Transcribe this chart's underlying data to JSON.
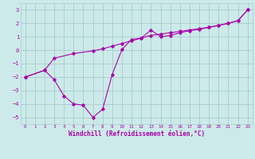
{
  "xlabel": "Windchill (Refroidissement éolien,°C)",
  "background_color": "#cceaea",
  "grid_color": "#aacccc",
  "line_color": "#aa00aa",
  "xlim": [
    -0.5,
    23.5
  ],
  "ylim": [
    -5.5,
    3.5
  ],
  "xticks": [
    0,
    1,
    2,
    3,
    4,
    5,
    6,
    7,
    8,
    9,
    10,
    11,
    12,
    13,
    14,
    15,
    16,
    17,
    18,
    19,
    20,
    21,
    22,
    23
  ],
  "yticks": [
    -5,
    -4,
    -3,
    -2,
    -1,
    0,
    1,
    2,
    3
  ],
  "line1_x": [
    0,
    2,
    3,
    5,
    7,
    8,
    9,
    10,
    11,
    12,
    13,
    14,
    15,
    16,
    17,
    18,
    19,
    20,
    21,
    22,
    23
  ],
  "line1_y": [
    -2.0,
    -1.5,
    -0.6,
    -0.25,
    -0.05,
    0.1,
    0.3,
    0.5,
    0.7,
    0.9,
    1.1,
    1.2,
    1.3,
    1.4,
    1.5,
    1.6,
    1.7,
    1.85,
    2.0,
    2.2,
    3.0
  ],
  "line2_x": [
    0,
    2,
    3,
    4,
    5,
    6,
    7,
    8,
    9,
    10,
    11,
    12,
    13,
    14,
    15,
    16,
    17,
    18,
    19,
    20,
    21,
    22,
    23
  ],
  "line2_y": [
    -2.0,
    -1.5,
    -2.2,
    -3.4,
    -4.0,
    -4.1,
    -5.0,
    -4.4,
    -1.8,
    0.05,
    0.8,
    0.9,
    1.5,
    1.0,
    1.1,
    1.3,
    1.45,
    1.55,
    1.7,
    1.85,
    2.0,
    2.2,
    3.0
  ]
}
